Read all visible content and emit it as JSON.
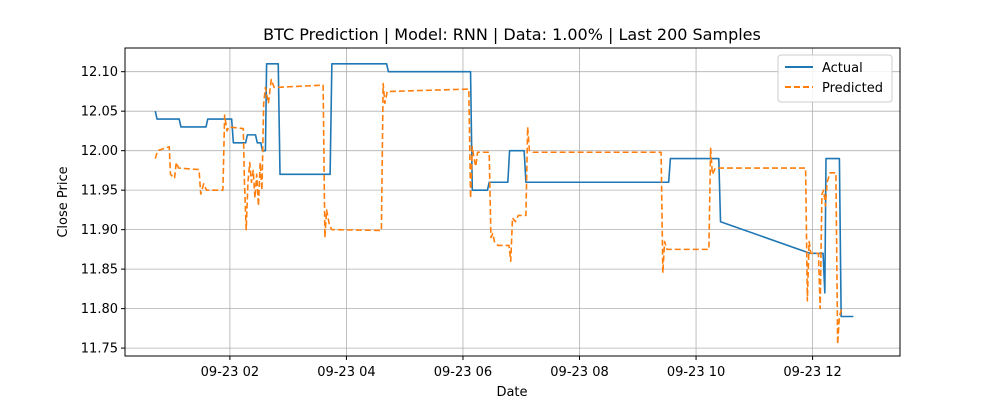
{
  "chart_data": {
    "type": "line",
    "title": "BTC Prediction | Model: RNN | Data: 1.00% | Last 200 Samples",
    "xlabel": "Date",
    "ylabel": "Close Price",
    "xlim_hours": [
      0.2,
      13.5
    ],
    "ylim": [
      11.74,
      12.13
    ],
    "grid": true,
    "legend_position": "top-right",
    "x_ticks": [
      {
        "label": "09-23 02",
        "hour": 2
      },
      {
        "label": "09-23 04",
        "hour": 4
      },
      {
        "label": "09-23 06",
        "hour": 6
      },
      {
        "label": "09-23 08",
        "hour": 8
      },
      {
        "label": "09-23 10",
        "hour": 10
      },
      {
        "label": "09-23 12",
        "hour": 12
      }
    ],
    "y_ticks": [
      {
        "label": "11.75",
        "value": 11.75
      },
      {
        "label": "11.80",
        "value": 11.8
      },
      {
        "label": "11.85",
        "value": 11.85
      },
      {
        "label": "11.90",
        "value": 11.9
      },
      {
        "label": "11.95",
        "value": 11.95
      },
      {
        "label": "12.00",
        "value": 12.0
      },
      {
        "label": "12.05",
        "value": 12.05
      },
      {
        "label": "12.10",
        "value": 12.1
      }
    ],
    "series": [
      {
        "name": "Actual",
        "color": "#1f77b4",
        "style": "solid",
        "points": [
          [
            0.72,
            12.05
          ],
          [
            0.75,
            12.04
          ],
          [
            1.13,
            12.04
          ],
          [
            1.16,
            12.03
          ],
          [
            1.59,
            12.03
          ],
          [
            1.62,
            12.04
          ],
          [
            2.03,
            12.04
          ],
          [
            2.06,
            12.01
          ],
          [
            2.27,
            12.01
          ],
          [
            2.3,
            12.02
          ],
          [
            2.44,
            12.02
          ],
          [
            2.47,
            12.01
          ],
          [
            2.53,
            12.01
          ],
          [
            2.56,
            12.0
          ],
          [
            2.61,
            12.0
          ],
          [
            2.63,
            12.11
          ],
          [
            2.83,
            12.11
          ],
          [
            2.86,
            11.97
          ],
          [
            3.72,
            11.97
          ],
          [
            3.75,
            12.11
          ],
          [
            4.69,
            12.11
          ],
          [
            4.72,
            12.1
          ],
          [
            6.13,
            12.1
          ],
          [
            6.16,
            11.95
          ],
          [
            6.42,
            11.95
          ],
          [
            6.45,
            11.96
          ],
          [
            6.77,
            11.96
          ],
          [
            6.8,
            12.0
          ],
          [
            7.05,
            12.0
          ],
          [
            7.08,
            11.96
          ],
          [
            9.53,
            11.96
          ],
          [
            9.56,
            11.99
          ],
          [
            10.39,
            11.99
          ],
          [
            10.42,
            11.91
          ],
          [
            11.96,
            11.87
          ],
          [
            12.18,
            11.87
          ],
          [
            12.21,
            11.82
          ],
          [
            12.23,
            11.99
          ],
          [
            12.46,
            11.99
          ],
          [
            12.49,
            11.79
          ],
          [
            12.7,
            11.79
          ]
        ]
      },
      {
        "name": "Predicted",
        "color": "#ff7f0e",
        "style": "dashed",
        "points": [
          [
            0.72,
            11.99
          ],
          [
            0.76,
            12.0
          ],
          [
            0.96,
            12.005
          ],
          [
            0.98,
            11.97
          ],
          [
            1.05,
            11.965
          ],
          [
            1.08,
            11.985
          ],
          [
            1.12,
            11.978
          ],
          [
            1.47,
            11.976
          ],
          [
            1.5,
            11.945
          ],
          [
            1.55,
            11.958
          ],
          [
            1.6,
            11.95
          ],
          [
            1.88,
            11.95
          ],
          [
            1.91,
            12.045
          ],
          [
            1.95,
            12.025
          ],
          [
            1.98,
            12.03
          ],
          [
            2.23,
            12.028
          ],
          [
            2.25,
            11.96
          ],
          [
            2.28,
            11.9
          ],
          [
            2.31,
            11.96
          ],
          [
            2.34,
            11.985
          ],
          [
            2.37,
            11.96
          ],
          [
            2.4,
            11.975
          ],
          [
            2.43,
            11.94
          ],
          [
            2.46,
            11.97
          ],
          [
            2.49,
            11.93
          ],
          [
            2.52,
            11.985
          ],
          [
            2.55,
            11.95
          ],
          [
            2.58,
            12.06
          ],
          [
            2.61,
            12.08
          ],
          [
            2.66,
            12.06
          ],
          [
            2.71,
            12.09
          ],
          [
            2.76,
            12.08
          ],
          [
            3.6,
            12.083
          ],
          [
            3.63,
            11.89
          ],
          [
            3.66,
            11.925
          ],
          [
            3.71,
            11.905
          ],
          [
            3.75,
            11.9
          ],
          [
            4.6,
            11.899
          ],
          [
            4.63,
            12.085
          ],
          [
            4.66,
            12.06
          ],
          [
            4.7,
            12.075
          ],
          [
            4.75,
            12.075
          ],
          [
            6.1,
            12.078
          ],
          [
            6.13,
            11.94
          ],
          [
            6.16,
            12.005
          ],
          [
            6.19,
            11.99
          ],
          [
            6.22,
            11.98
          ],
          [
            6.25,
            11.998
          ],
          [
            6.45,
            11.998
          ],
          [
            6.48,
            11.89
          ],
          [
            6.51,
            11.895
          ],
          [
            6.54,
            11.885
          ],
          [
            6.6,
            11.88
          ],
          [
            6.79,
            11.88
          ],
          [
            6.82,
            11.86
          ],
          [
            6.85,
            11.915
          ],
          [
            6.9,
            11.91
          ],
          [
            6.95,
            11.918
          ],
          [
            7.08,
            11.918
          ],
          [
            7.11,
            12.03
          ],
          [
            7.14,
            12.0
          ],
          [
            7.2,
            11.998
          ],
          [
            9.4,
            11.998
          ],
          [
            9.43,
            11.845
          ],
          [
            9.46,
            11.885
          ],
          [
            9.5,
            11.875
          ],
          [
            10.22,
            11.875
          ],
          [
            10.25,
            12.003
          ],
          [
            10.28,
            11.97
          ],
          [
            10.33,
            11.978
          ],
          [
            11.88,
            11.978
          ],
          [
            11.91,
            11.81
          ],
          [
            11.94,
            11.885
          ],
          [
            11.97,
            11.87
          ],
          [
            12.1,
            11.87
          ],
          [
            12.13,
            11.8
          ],
          [
            12.16,
            11.945
          ],
          [
            12.19,
            11.95
          ],
          [
            12.22,
            11.93
          ],
          [
            12.25,
            11.96
          ],
          [
            12.3,
            11.972
          ],
          [
            12.4,
            11.972
          ],
          [
            12.43,
            11.755
          ],
          [
            12.46,
            11.79
          ],
          [
            12.5,
            11.8
          ]
        ]
      }
    ]
  }
}
